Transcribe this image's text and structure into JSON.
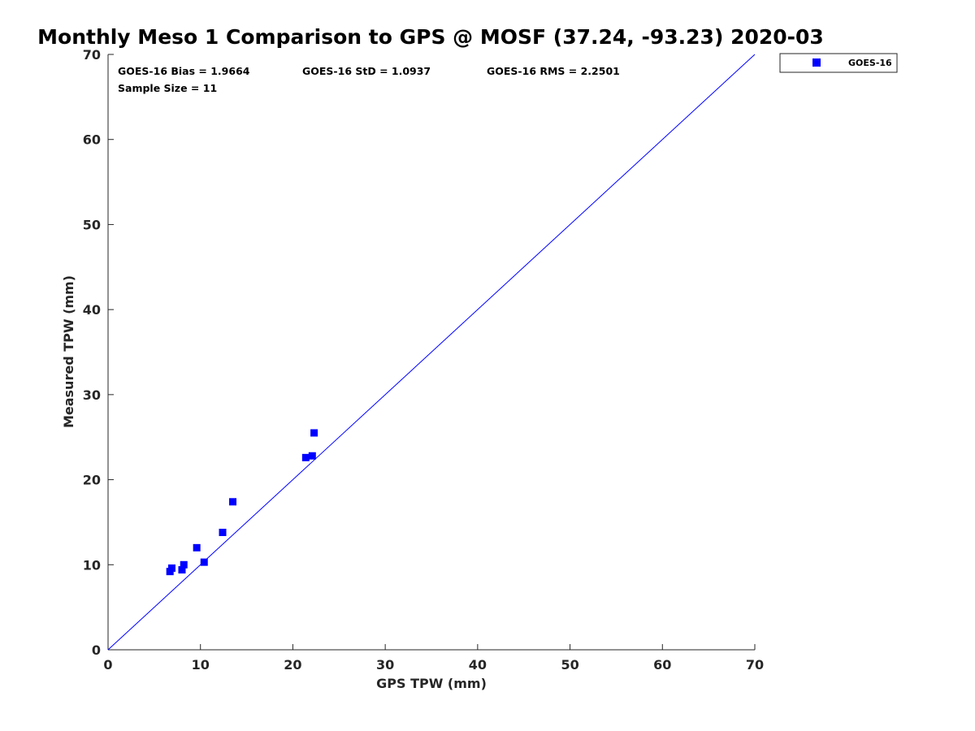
{
  "chart_data": {
    "type": "scatter",
    "title": "Monthly Meso 1 Comparison to GPS @ MOSF (37.24, -93.23) 2020-03",
    "xlabel": "GPS TPW (mm)",
    "ylabel": "Measured TPW (mm)",
    "xlim": [
      0,
      70
    ],
    "ylim": [
      0,
      70
    ],
    "x_ticks": [
      0,
      10,
      20,
      30,
      40,
      50,
      60,
      70
    ],
    "y_ticks": [
      0,
      10,
      20,
      30,
      40,
      50,
      60,
      70
    ],
    "grid": false,
    "legend_position": "outside top-right",
    "reference_line": {
      "from": [
        0,
        0
      ],
      "to": [
        70,
        70
      ],
      "color": "#0000ff"
    },
    "stats": {
      "bias": "GOES-16 Bias = 1.9664",
      "std": "GOES-16 StD = 1.0937",
      "rms": "GOES-16 RMS = 2.2501",
      "sample_size": "Sample Size = 11"
    },
    "series": [
      {
        "name": "GOES-16",
        "color": "#0000ff",
        "marker": "square",
        "points": [
          {
            "x": 6.7,
            "y": 9.2
          },
          {
            "x": 6.9,
            "y": 9.6
          },
          {
            "x": 8.0,
            "y": 9.4
          },
          {
            "x": 8.2,
            "y": 10.0
          },
          {
            "x": 9.6,
            "y": 12.0
          },
          {
            "x": 10.4,
            "y": 10.3
          },
          {
            "x": 12.4,
            "y": 13.8
          },
          {
            "x": 13.5,
            "y": 17.4
          },
          {
            "x": 21.4,
            "y": 22.6
          },
          {
            "x": 22.1,
            "y": 22.8
          },
          {
            "x": 22.3,
            "y": 25.5
          }
        ]
      }
    ]
  }
}
